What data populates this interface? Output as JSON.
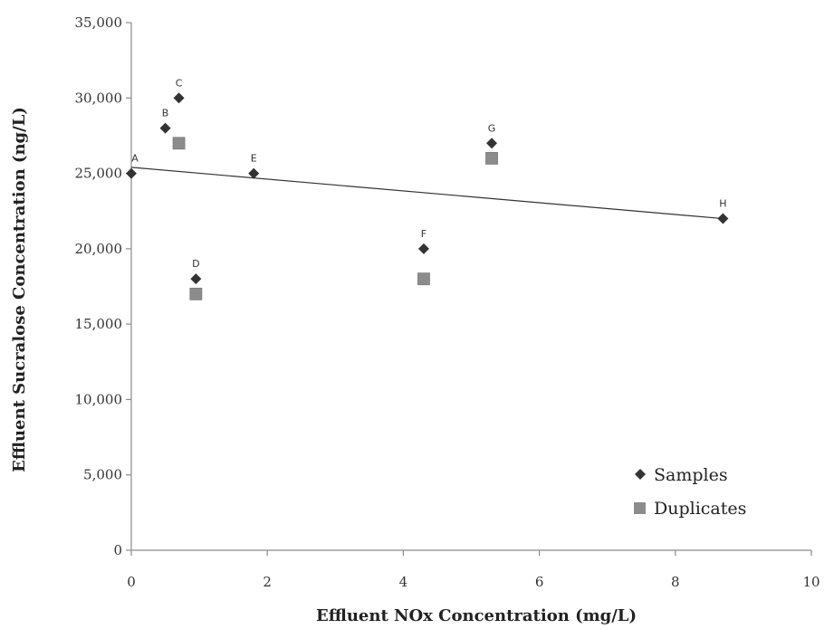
{
  "chart_data": {
    "type": "scatter",
    "xlabel": "Effluent NOx Concentration (mg/L)",
    "ylabel": "Effluent Sucralose Concentration (ng/L)",
    "xlim": [
      0,
      10
    ],
    "ylim": [
      0,
      35000
    ],
    "x_ticks": [
      0,
      2,
      4,
      6,
      8,
      10
    ],
    "x_tick_labels": [
      "0",
      "2",
      "4",
      "6",
      "8",
      "10"
    ],
    "y_ticks": [
      0,
      5000,
      10000,
      15000,
      20000,
      25000,
      30000,
      35000
    ],
    "y_tick_labels": [
      "0",
      "5,000",
      "10,000",
      "15,000",
      "20,000",
      "25,000",
      "30,000",
      "35,000"
    ],
    "grid": false,
    "legend_position": "bottom-right",
    "series": [
      {
        "name": "Samples",
        "marker": "diamond",
        "color": "#333333",
        "points": [
          {
            "label": "A",
            "x": 0.0,
            "y": 25000
          },
          {
            "label": "B",
            "x": 0.5,
            "y": 28000
          },
          {
            "label": "C",
            "x": 0.7,
            "y": 30000
          },
          {
            "label": "D",
            "x": 0.95,
            "y": 18000
          },
          {
            "label": "E",
            "x": 1.8,
            "y": 25000
          },
          {
            "label": "F",
            "x": 4.3,
            "y": 20000
          },
          {
            "label": "G",
            "x": 5.3,
            "y": 27000
          },
          {
            "label": "H",
            "x": 8.7,
            "y": 22000
          }
        ]
      },
      {
        "name": "Duplicates",
        "marker": "square",
        "color": "#8c8c8c",
        "points": [
          {
            "x": 0.7,
            "y": 27000
          },
          {
            "x": 0.95,
            "y": 17000
          },
          {
            "x": 4.3,
            "y": 18000
          },
          {
            "x": 5.3,
            "y": 26000
          }
        ]
      }
    ],
    "trendline": {
      "type": "linear",
      "color": "#333333",
      "x": [
        0,
        8.7
      ],
      "y": [
        25400,
        22000
      ]
    }
  }
}
